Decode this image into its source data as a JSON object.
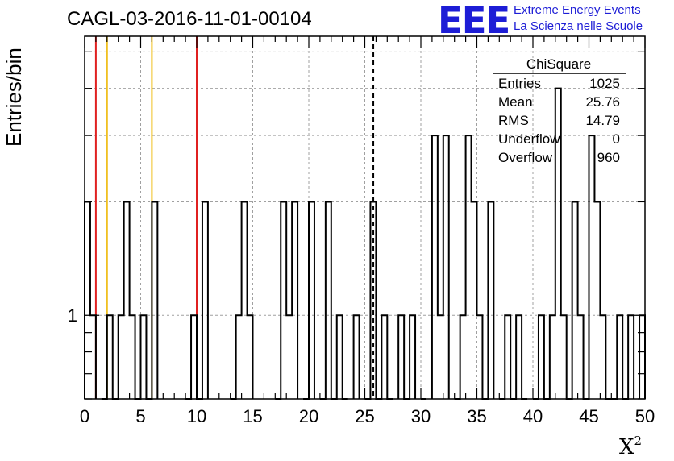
{
  "header": {
    "title": "CAGL-03-2016-11-01-00104",
    "logo_mark": "EEE",
    "logo_line1": "Extreme Energy Events",
    "logo_line2": "La Scienza nelle Scuole"
  },
  "colors": {
    "logo": "#1d1dd6",
    "red_line": "#e02020",
    "yellow_line": "#f0c020",
    "grid": "#a0a0a0"
  },
  "chart_data": {
    "type": "bar",
    "histogram": true,
    "xlabel": "X2",
    "ylabel": "Entries/bin",
    "xlim": [
      0,
      50
    ],
    "y_scale": "log",
    "ylim": [
      0.6,
      5.5
    ],
    "x_ticks": [
      "0",
      "5",
      "10",
      "15",
      "20",
      "25",
      "30",
      "35",
      "40",
      "45",
      "50"
    ],
    "y_ticks": [
      "1"
    ],
    "grid": true,
    "bin_width": 0.5,
    "bin_starts": [
      0,
      0.5,
      1.5,
      2,
      2.5,
      3,
      3.5,
      4,
      4.5,
      5,
      5.5,
      6,
      9,
      9.5,
      10,
      10.5,
      13,
      13.5,
      14,
      14.5,
      17,
      17.5,
      18,
      18.5,
      19.5,
      20,
      21,
      21.5,
      22,
      22.5,
      23,
      24,
      25,
      25.5,
      26,
      26.5,
      27,
      28,
      28.5,
      29,
      30,
      31,
      31.5,
      32,
      33,
      33.5,
      34,
      34.5,
      35,
      35.5,
      36,
      37,
      37.5,
      38,
      38.5,
      39,
      40,
      40.5,
      41,
      41.5,
      42,
      42.5,
      43,
      43.5,
      44,
      44.5,
      45,
      45.5,
      46,
      46.5,
      47,
      47.5,
      48,
      48.5,
      49.5
    ],
    "values": [
      2,
      1,
      0.5,
      1,
      0.5,
      1,
      2,
      1,
      0.5,
      1,
      0.5,
      2,
      0.5,
      1,
      0.5,
      2,
      0.5,
      1,
      2,
      1,
      0.5,
      2,
      1,
      2,
      0.5,
      2,
      0.5,
      2,
      0.5,
      1,
      0.5,
      1,
      0.5,
      2,
      0.5,
      1,
      0.5,
      1,
      0.5,
      1,
      0.5,
      3,
      1,
      3,
      0.5,
      1,
      3,
      2,
      1,
      0.5,
      2,
      0.5,
      1,
      0.5,
      1,
      0.5,
      0.5,
      1,
      0.5,
      1,
      4,
      1,
      0.5,
      2,
      1,
      0.5,
      3,
      2,
      1,
      0.5,
      0.5,
      1,
      0.5,
      1,
      1
    ],
    "vertical_lines": [
      {
        "x": 1,
        "color": "red"
      },
      {
        "x": 2,
        "color": "yellow"
      },
      {
        "x": 6,
        "color": "yellow"
      },
      {
        "x": 10,
        "color": "red"
      },
      {
        "x": 25.76,
        "color": "black",
        "style": "dashed"
      }
    ],
    "stats_box": {
      "name": "ChiSquare",
      "rows": [
        {
          "label": "Entries",
          "value": "1025"
        },
        {
          "label": "Mean",
          "value": "25.76"
        },
        {
          "label": "RMS",
          "value": "14.79"
        },
        {
          "label": "Underflow",
          "value": "0"
        },
        {
          "label": "Overflow",
          "value": "960"
        }
      ]
    }
  }
}
